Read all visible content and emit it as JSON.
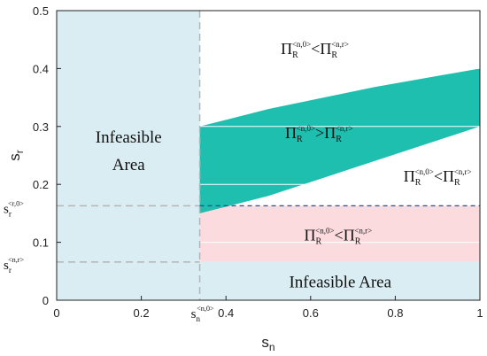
{
  "chart_data": {
    "type": "area",
    "xlabel": "s",
    "xlabel_sub": "n",
    "ylabel": "s",
    "ylabel_sub": "r",
    "xlim": [
      0,
      1
    ],
    "ylim": [
      0,
      0.5
    ],
    "x_ticks": [
      "0",
      "0.2",
      "0.4",
      "0.6",
      "0.8",
      "1"
    ],
    "x_tick_values": [
      0,
      0.2,
      0.4,
      0.6,
      0.8,
      1
    ],
    "y_ticks": [
      "0",
      "0.1",
      "0.2",
      "0.3",
      "0.4",
      "0.5"
    ],
    "y_tick_values": [
      0,
      0.1,
      0.2,
      0.3,
      0.4,
      0.5
    ],
    "thresholds": {
      "sn_n0": 0.338,
      "sr_r0": 0.163,
      "sr_nr": 0.066
    },
    "threshold_labels": {
      "sn_n0": {
        "base": "s",
        "sub": "n",
        "sup": "<n,0>"
      },
      "sr_r0": {
        "base": "s",
        "sub": "r",
        "sup": "<r,0>"
      },
      "sr_nr": {
        "base": "s",
        "sub": "r",
        "sup": "<n,r>"
      }
    },
    "regions": [
      {
        "name": "infeasible-left",
        "label": [
          "Infeasible",
          "Area"
        ],
        "color": "#d9edf3",
        "x_range": [
          0,
          0.338
        ],
        "y_range": [
          0,
          0.5
        ]
      },
      {
        "name": "infeasible-bottom",
        "label": [
          "Infeasible Area"
        ],
        "color": "#d9edf3",
        "x_range": [
          0.338,
          1
        ],
        "y_range": [
          0,
          0.066
        ]
      },
      {
        "name": "pink-band",
        "color": "#fcdbdf",
        "x_range": [
          0.338,
          1
        ],
        "y_range": [
          0.066,
          0.163
        ]
      },
      {
        "name": "teal-band",
        "color": "#1ebfae",
        "x": [
          0.338,
          0.5,
          0.75,
          1.0
        ],
        "upper": [
          0.3,
          0.33,
          0.368,
          0.4
        ],
        "lower": [
          0.15,
          0.18,
          0.24,
          0.3
        ]
      }
    ],
    "annotations": [
      {
        "name": "annot-top",
        "left": "Π",
        "lsub": "R",
        "lsup": "<n,0>",
        "op": "<",
        "right": "Π",
        "rsub": "R",
        "rsup": "<n,r>",
        "x": 0.61,
        "y": 0.425
      },
      {
        "name": "annot-teal",
        "left": "Π",
        "lsub": "R",
        "lsup": "<n,0>",
        "op": ">",
        "right": "Π",
        "rsub": "R",
        "rsup": "<n,r>",
        "x": 0.62,
        "y": 0.28
      },
      {
        "name": "annot-right",
        "left": "Π",
        "lsub": "R",
        "lsup": "<n,0>",
        "op": "<",
        "right": "Π",
        "rsub": "R",
        "rsup": "<n,r>",
        "x": 0.9,
        "y": 0.205
      },
      {
        "name": "annot-pink",
        "left": "Π",
        "lsub": "R",
        "lsup": "<n,0>",
        "op": "<",
        "right": "Π",
        "rsub": "R",
        "rsup": "<n,r>",
        "x": 0.665,
        "y": 0.103
      }
    ],
    "colors": {
      "infeasible": "#d9edf3",
      "teal": "#1ebfae",
      "pink": "#fcdbdf",
      "dashed_gray": "#b5b5b5",
      "dashed_blue": "#2b4e87"
    }
  }
}
